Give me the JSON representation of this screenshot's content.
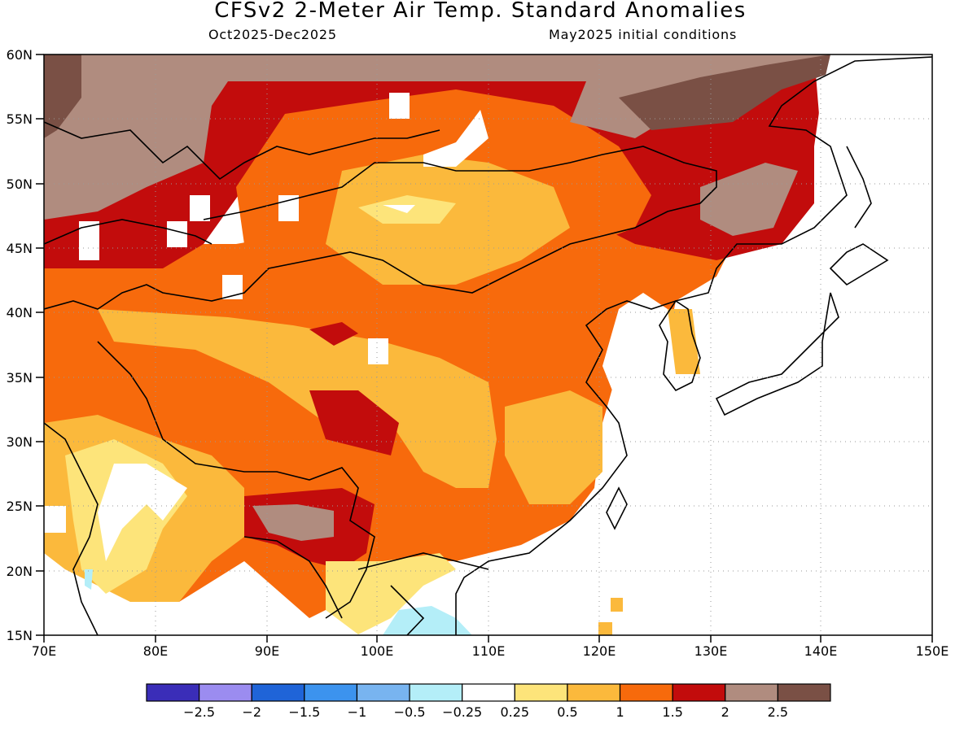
{
  "title": "CFSv2 2-Meter Air Temp. Standard Anomalies",
  "period": "Oct2025-Dec2025",
  "initial_conditions": "May2025 initial conditions",
  "map": {
    "lon_range": [
      70,
      150
    ],
    "lat_range": [
      15,
      60
    ],
    "lon_ticks": [
      "70E",
      "80E",
      "90E",
      "100E",
      "110E",
      "120E",
      "130E",
      "140E",
      "150E"
    ],
    "lat_ticks": [
      "60N",
      "55N",
      "50N",
      "45N",
      "40N",
      "35N",
      "30N",
      "25N",
      "20N",
      "15N"
    ]
  },
  "colorbar": {
    "labels": [
      "-2.5",
      "-2",
      "-1.5",
      "-1",
      "-0.5",
      "-0.25",
      "0.25",
      "0.5",
      "1",
      "1.5",
      "2",
      "2.5"
    ],
    "colors": [
      "#3a2db8",
      "#9b8cf0",
      "#1f64d8",
      "#3c93ee",
      "#78b4f0",
      "#b4eef8",
      "#ffffff",
      "#fde47a",
      "#fbb93c",
      "#f76a0c",
      "#c20c0c",
      "#b08c7f",
      "#7a5045"
    ]
  }
}
